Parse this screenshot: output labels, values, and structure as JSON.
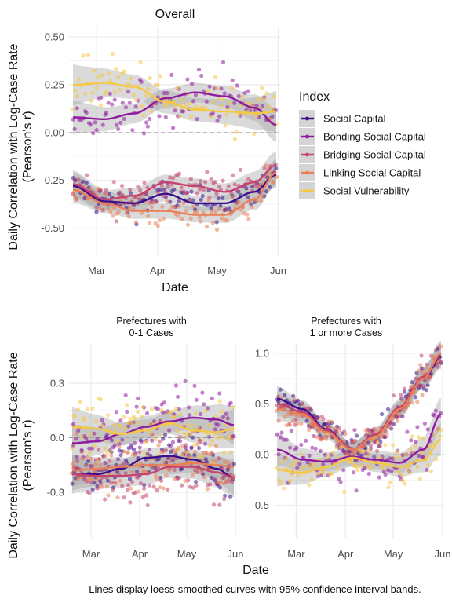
{
  "colors": {
    "social_capital": "#3b0f8c",
    "bonding": "#8f199f",
    "bridging": "#c5426f",
    "linking": "#ea7f56",
    "vulnerability": "#f5c842",
    "ribbon": "#a8a8a8",
    "grid": "#ebebeb",
    "zero_line": "#999999"
  },
  "legend": {
    "title": "Index",
    "items": [
      "Social Capital",
      "Bonding Social Capital",
      "Bridging Social Capital",
      "Linking Social Capital",
      "Social Vulnerability"
    ]
  },
  "caption": "Lines display loess-smoothed curves with 95% confidence interval bands.",
  "chart_data": [
    {
      "type": "scatter",
      "title": "Overall",
      "xlabel": "Date",
      "ylabel": "Daily Correlation with Log-Case Rate",
      "ylabel2": "(Pearson's r)",
      "x_ticks": [
        "Mar",
        "Apr",
        "May",
        "Jun"
      ],
      "y_ticks": [
        "0.50",
        "0.25",
        "0.00",
        "-0.25",
        "-0.50"
      ],
      "y_tick_values": [
        0.5,
        0.25,
        0.0,
        -0.25,
        -0.5
      ],
      "xlim": [
        "2020-02-16",
        "2020-06-02"
      ],
      "ylim": [
        -0.65,
        0.55
      ],
      "x_smooth": [
        "2020-02-18",
        "2020-03-05",
        "2020-03-20",
        "2020-04-05",
        "2020-04-20",
        "2020-05-05",
        "2020-05-20",
        "2020-05-31"
      ],
      "series": [
        {
          "name": "Social Capital",
          "color_key": "social_capital",
          "smooth": [
            -0.28,
            -0.36,
            -0.37,
            -0.32,
            -0.37,
            -0.37,
            -0.31,
            -0.22
          ],
          "band": 0.04,
          "spread": 0.07
        },
        {
          "name": "Bonding Social Capital",
          "color_key": "bonding",
          "smooth": [
            0.08,
            0.07,
            0.1,
            0.18,
            0.21,
            0.19,
            0.13,
            0.04
          ],
          "band": 0.05,
          "spread": 0.12
        },
        {
          "name": "Bridging Social Capital",
          "color_key": "bridging",
          "smooth": [
            -0.27,
            -0.35,
            -0.33,
            -0.26,
            -0.28,
            -0.31,
            -0.26,
            -0.17
          ],
          "band": 0.04,
          "spread": 0.07
        },
        {
          "name": "Linking Social Capital",
          "color_key": "linking",
          "smooth": [
            -0.3,
            -0.37,
            -0.41,
            -0.41,
            -0.43,
            -0.43,
            -0.35,
            -0.21
          ],
          "band": 0.04,
          "spread": 0.07
        },
        {
          "name": "Social Vulnerability",
          "color_key": "vulnerability",
          "smooth": [
            0.25,
            0.26,
            0.24,
            0.16,
            0.12,
            0.11,
            0.1,
            0.11
          ],
          "band": 0.06,
          "spread": 0.12
        }
      ]
    },
    {
      "type": "scatter",
      "title": "Prefectures with",
      "title2": "0-1 Cases",
      "xlabel": "",
      "ylabel": "Daily Correlation with Log-Case Rate",
      "ylabel2": "(Pearson's r)",
      "x_ticks": [
        "Mar",
        "Apr",
        "May",
        "Jun"
      ],
      "y_ticks": [
        "0.3",
        "0.0",
        "-0.3"
      ],
      "y_tick_values": [
        0.3,
        0.0,
        -0.3
      ],
      "xlim": [
        "2020-02-16",
        "2020-06-02"
      ],
      "ylim": [
        -0.55,
        0.52
      ],
      "x_smooth": [
        "2020-02-18",
        "2020-03-05",
        "2020-03-20",
        "2020-04-05",
        "2020-04-20",
        "2020-05-05",
        "2020-05-20",
        "2020-05-31"
      ],
      "series": [
        {
          "name": "Social Capital",
          "color_key": "social_capital",
          "smooth": [
            -0.2,
            -0.2,
            -0.17,
            -0.11,
            -0.1,
            -0.12,
            -0.17,
            -0.22
          ],
          "band": 0.05,
          "spread": 0.12
        },
        {
          "name": "Bonding Social Capital",
          "color_key": "bonding",
          "smooth": [
            -0.03,
            -0.02,
            0.02,
            0.06,
            0.09,
            0.11,
            0.1,
            0.07
          ],
          "band": 0.06,
          "spread": 0.15
        },
        {
          "name": "Bridging Social Capital",
          "color_key": "bridging",
          "smooth": [
            -0.2,
            -0.21,
            -0.21,
            -0.2,
            -0.16,
            -0.16,
            -0.19,
            -0.22
          ],
          "band": 0.06,
          "spread": 0.12
        },
        {
          "name": "Linking Social Capital",
          "color_key": "linking",
          "smooth": [
            -0.18,
            -0.17,
            -0.16,
            -0.15,
            -0.15,
            -0.14,
            -0.15,
            -0.16
          ],
          "band": 0.05,
          "spread": 0.12
        },
        {
          "name": "Social Vulnerability",
          "color_key": "vulnerability",
          "smooth": [
            0.06,
            0.05,
            0.02,
            0.04,
            0.08,
            0.04,
            0.03,
            0.05
          ],
          "band": 0.06,
          "spread": 0.15
        }
      ]
    },
    {
      "type": "scatter",
      "title": "Prefectures with",
      "title2": "1 or more Cases",
      "xlabel": "",
      "ylabel": "",
      "x_ticks": [
        "Mar",
        "Apr",
        "May",
        "Jun"
      ],
      "y_ticks": [
        "1.0",
        "0.5",
        "0.0",
        "-0.5"
      ],
      "y_tick_values": [
        1.0,
        0.5,
        0.0,
        -0.5
      ],
      "xlim": [
        "2020-02-16",
        "2020-06-02"
      ],
      "ylim": [
        -0.82,
        1.1
      ],
      "x_smooth": [
        "2020-02-18",
        "2020-03-05",
        "2020-03-20",
        "2020-04-05",
        "2020-04-20",
        "2020-05-05",
        "2020-05-20",
        "2020-05-31"
      ],
      "series": [
        {
          "name": "Social Capital",
          "color_key": "social_capital",
          "smooth": [
            0.55,
            0.45,
            0.25,
            0.05,
            0.2,
            0.45,
            0.75,
            0.97
          ],
          "band": 0.07,
          "spread": 0.12
        },
        {
          "name": "Bonding Social Capital",
          "color_key": "bonding",
          "smooth": [
            0.05,
            -0.05,
            -0.07,
            -0.02,
            -0.05,
            -0.08,
            0.05,
            0.4
          ],
          "band": 0.09,
          "spread": 0.2
        },
        {
          "name": "Bridging Social Capital",
          "color_key": "bridging",
          "smooth": [
            0.5,
            0.42,
            0.24,
            0.05,
            0.2,
            0.47,
            0.77,
            0.98
          ],
          "band": 0.07,
          "spread": 0.12
        },
        {
          "name": "Linking Social Capital",
          "color_key": "linking",
          "smooth": [
            0.45,
            0.4,
            0.22,
            0.05,
            0.18,
            0.45,
            0.75,
            1.0
          ],
          "band": 0.07,
          "spread": 0.12
        },
        {
          "name": "Social Vulnerability",
          "color_key": "vulnerability",
          "smooth": [
            -0.15,
            -0.18,
            -0.12,
            -0.03,
            -0.08,
            -0.12,
            -0.05,
            0.15
          ],
          "band": 0.09,
          "spread": 0.2
        }
      ]
    }
  ]
}
